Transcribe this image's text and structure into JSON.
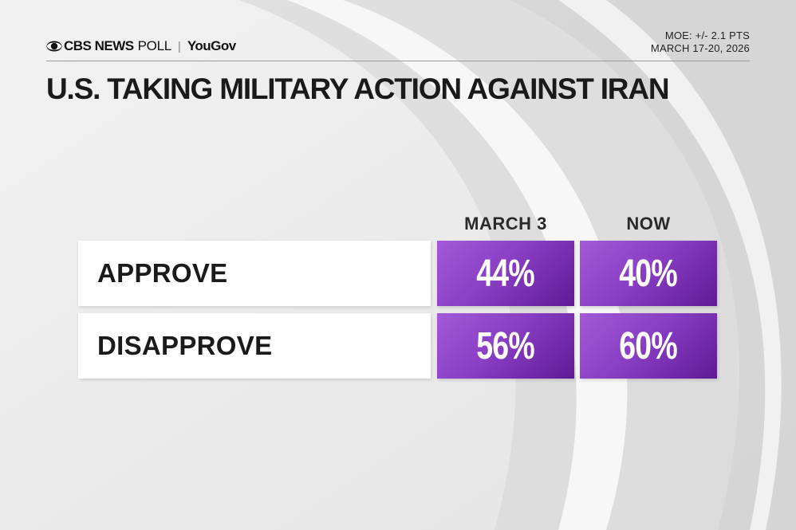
{
  "header": {
    "brand_cbs": "CBS NEWS",
    "brand_poll": "POLL",
    "brand_separator": "|",
    "brand_partner": "YouGov",
    "moe": "MOE: +/- 2.1 PTS",
    "dates": "MARCH 17-20, 2026"
  },
  "chart_data": {
    "type": "table",
    "title": "U.S. TAKING MILITARY ACTION AGAINST IRAN",
    "columns": [
      "MARCH 3",
      "NOW"
    ],
    "rows": [
      {
        "label": "APPROVE",
        "values": [
          "44%",
          "40%"
        ],
        "numeric": [
          44,
          40
        ]
      },
      {
        "label": "DISAPPROVE",
        "values": [
          "56%",
          "60%"
        ],
        "numeric": [
          56,
          60
        ]
      }
    ],
    "colors": {
      "cell_light": "#a25ad6",
      "cell_dark": "#5f1a96",
      "label_bg": "#ffffff",
      "text": "#1a1a1a"
    }
  }
}
